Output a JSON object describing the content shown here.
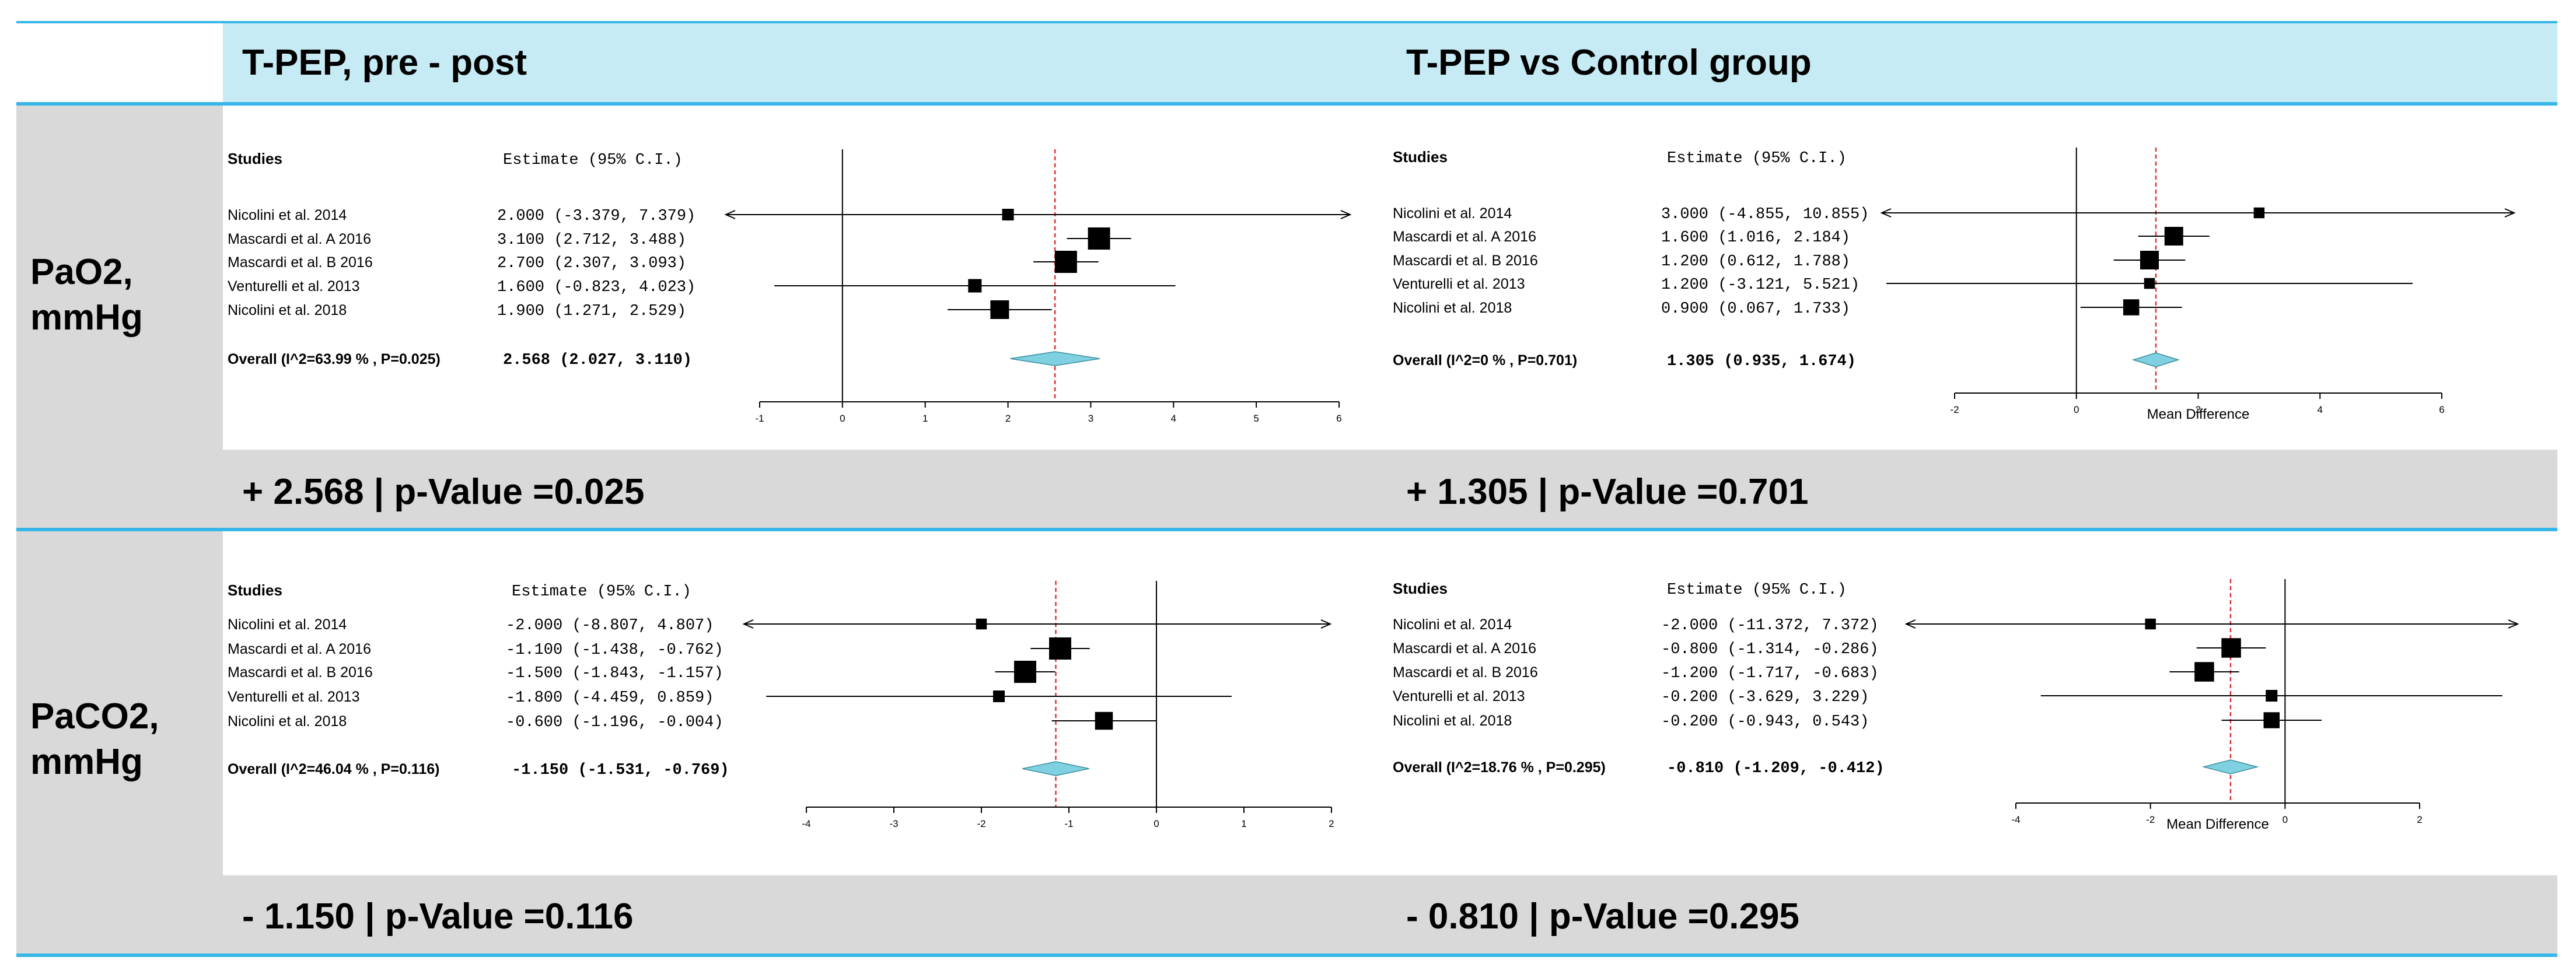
{
  "header": {
    "left_title": "T-PEP, pre - post",
    "right_title": "T-PEP vs Control group"
  },
  "rows": [
    {
      "label": "PaO2,\nmmHg",
      "left_summary": "+ 2.568 | p-Value =0.025",
      "right_summary": "+ 1.305 | p-Value =0.701"
    },
    {
      "label": "PaCO2,\nmmHg",
      "left_summary": "- 1.150 | p-Value =0.116",
      "right_summary": "- 0.810 | p-Value =0.295"
    }
  ],
  "colors": {
    "header_bg": "#c6ebf5",
    "panel_bg": "#d9d9d9",
    "divider": "#37b6e8",
    "diamond": "#7fd0e0",
    "ref_line": "#e03030"
  },
  "chart_data": [
    {
      "type": "forest",
      "studies_header": "Studies",
      "estimate_header": "Estimate (95% C.I.)",
      "studies": [
        {
          "name": "Nicolini et al. 2014",
          "estimate": 2.0,
          "lower": -3.379,
          "upper": 7.379,
          "text": "2.000 (-3.379, 7.379)",
          "arrow_left": true,
          "arrow_right": true,
          "weight": 0.4
        },
        {
          "name": "Mascardi et al. A 2016",
          "estimate": 3.1,
          "lower": 2.712,
          "upper": 3.488,
          "text": "3.100 (2.712, 3.488)",
          "weight": 1.0
        },
        {
          "name": "Mascardi et al. B 2016",
          "estimate": 2.7,
          "lower": 2.307,
          "upper": 3.093,
          "text": "2.700 (2.307, 3.093)",
          "weight": 1.0
        },
        {
          "name": "Venturelli et al. 2013",
          "estimate": 1.6,
          "lower": -0.823,
          "upper": 4.023,
          "text": "1.600 (-0.823, 4.023)",
          "weight": 0.5
        },
        {
          "name": "Nicolini et al.  2018",
          "estimate": 1.9,
          "lower": 1.271,
          "upper": 2.529,
          "text": "1.900 (1.271, 2.529)",
          "weight": 0.8
        }
      ],
      "overall": {
        "label": "Overall (I^2=63.99 % , P=0.025)",
        "estimate": 2.568,
        "lower": 2.027,
        "upper": 3.11,
        "text": "2.568   (2.027, 3.110)"
      },
      "xlim": [
        -1,
        6
      ],
      "ticks": [
        -1,
        0,
        1,
        2,
        3,
        4,
        5,
        6
      ],
      "xlabel": ""
    },
    {
      "type": "forest",
      "studies_header": "Studies",
      "estimate_header": "Estimate (95% C.I.)",
      "studies": [
        {
          "name": "Nicolini et al. 2014",
          "estimate": 3.0,
          "lower": -4.855,
          "upper": 10.855,
          "text": "3.000 (-4.855, 10.855)",
          "arrow_left": true,
          "arrow_right": true,
          "weight": 0.35
        },
        {
          "name": "Mascardi et al. A 2016",
          "estimate": 1.6,
          "lower": 1.016,
          "upper": 2.184,
          "text": "1.600 (1.016, 2.184)",
          "weight": 0.8
        },
        {
          "name": "Mascardi et al. B 2016",
          "estimate": 1.2,
          "lower": 0.612,
          "upper": 1.788,
          "text": "1.200 (0.612, 1.788)",
          "weight": 0.8
        },
        {
          "name": "Venturelli et al. 2013",
          "estimate": 1.2,
          "lower": -3.121,
          "upper": 5.521,
          "text": "1.200 (-3.121, 5.521)",
          "weight": 0.35
        },
        {
          "name": "Nicolini et al.  2018",
          "estimate": 0.9,
          "lower": 0.067,
          "upper": 1.733,
          "text": "0.900 (0.067, 1.733)",
          "weight": 0.65
        }
      ],
      "overall": {
        "label": "Overall (I^2=0 % , P=0.701)",
        "estimate": 1.305,
        "lower": 0.935,
        "upper": 1.674,
        "text": "1.305   (0.935, 1.674)"
      },
      "xlim": [
        -2,
        6
      ],
      "ticks": [
        -2,
        0,
        2,
        4,
        6
      ],
      "xlabel": "Mean Difference"
    },
    {
      "type": "forest",
      "studies_header": "Studies",
      "estimate_header": "Estimate (95% C.I.)",
      "studies": [
        {
          "name": "Nicolini et al. 2014",
          "estimate": -2.0,
          "lower": -8.807,
          "upper": 4.807,
          "text": "-2.000 (-8.807, 4.807)",
          "arrow_left": true,
          "arrow_right": true,
          "weight": 0.35
        },
        {
          "name": "Mascardi et al. A 2016",
          "estimate": -1.1,
          "lower": -1.438,
          "upper": -0.762,
          "text": "-1.100 (-1.438, -0.762)",
          "weight": 1.0
        },
        {
          "name": "Mascardi et al. B 2016",
          "estimate": -1.5,
          "lower": -1.843,
          "upper": -1.157,
          "text": "-1.500 (-1.843, -1.157)",
          "weight": 1.0
        },
        {
          "name": "Venturelli et al. 2013",
          "estimate": -1.8,
          "lower": -4.459,
          "upper": 0.859,
          "text": "-1.800 (-4.459, 0.859)",
          "weight": 0.4
        },
        {
          "name": "Nicolini et al.  2018",
          "estimate": -0.6,
          "lower": -1.196,
          "upper": -0.004,
          "text": "-0.600 (-1.196, -0.004)",
          "weight": 0.75
        }
      ],
      "overall": {
        "label": "Overall (I^2=46.04 % , P=0.116)",
        "estimate": -1.15,
        "lower": -1.531,
        "upper": -0.769,
        "text": "-1.150  (-1.531, -0.769)"
      },
      "xlim": [
        -4,
        2
      ],
      "ticks": [
        -4,
        -3,
        -2,
        -1,
        0,
        1,
        2
      ],
      "xlabel": ""
    },
    {
      "type": "forest",
      "studies_header": "Studies",
      "estimate_header": "Estimate (95% C.I.)",
      "studies": [
        {
          "name": "Nicolini et al. 2014",
          "estimate": -2.0,
          "lower": -11.372,
          "upper": 7.372,
          "text": "-2.000 (-11.372, 7.372)",
          "arrow_left": true,
          "arrow_right": true,
          "weight": 0.35
        },
        {
          "name": "Mascardi et al. A 2016",
          "estimate": -0.8,
          "lower": -1.314,
          "upper": -0.286,
          "text": "-0.800 (-1.314, -0.286)",
          "weight": 0.85
        },
        {
          "name": "Mascardi et al. B 2016",
          "estimate": -1.2,
          "lower": -1.717,
          "upper": -0.683,
          "text": "-1.200 (-1.717, -0.683)",
          "weight": 0.85
        },
        {
          "name": "Venturelli et al. 2013",
          "estimate": -0.2,
          "lower": -3.629,
          "upper": 3.229,
          "text": "-0.200 (-3.629, 3.229)",
          "weight": 0.4
        },
        {
          "name": "Nicolini et al.  2018",
          "estimate": -0.2,
          "lower": -0.943,
          "upper": 0.543,
          "text": "-0.200 (-0.943, 0.543)",
          "weight": 0.65
        }
      ],
      "overall": {
        "label": "Overall (I^2=18.76 % , P=0.295)",
        "estimate": -0.81,
        "lower": -1.209,
        "upper": -0.412,
        "text": "-0.810  (-1.209, -0.412)"
      },
      "xlim": [
        -4,
        2
      ],
      "ticks": [
        -4,
        -2,
        0,
        2
      ],
      "xlabel": "Mean Difference"
    }
  ]
}
